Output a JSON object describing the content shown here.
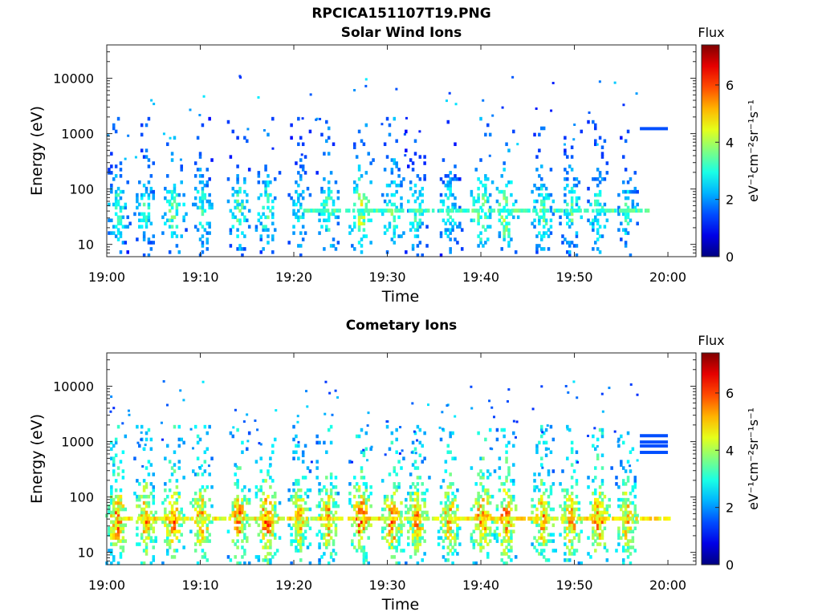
{
  "figure_title": "RPCICA151107T19.PNG",
  "chart_data": [
    {
      "type": "heatmap",
      "title": "Solar Wind Ions",
      "xlabel": "Time",
      "ylabel": "Energy (eV)",
      "y_scale": "log",
      "ylim": [
        6,
        40000
      ],
      "xlim": [
        "19:00",
        "20:03"
      ],
      "x_ticks": [
        "19:00",
        "19:10",
        "19:20",
        "19:30",
        "19:40",
        "19:50",
        "20:00"
      ],
      "y_ticks": [
        "10",
        "100",
        "1000",
        "10000"
      ],
      "colorbar": {
        "label": "Flux",
        "unit": "eV⁻¹cm⁻²sr⁻¹s⁻¹",
        "range": [
          0,
          7.4
        ],
        "ticks": [
          "0",
          "2",
          "4",
          "6"
        ],
        "colormap": "jet"
      },
      "burst_center_minutes": [
        1,
        4,
        7,
        10,
        14,
        17,
        20.5,
        23.5,
        27,
        30.5,
        33,
        36.5,
        40,
        42.5,
        46.5,
        49.5,
        52.5,
        55.5
      ],
      "burst_peak_flux": [
        3.4,
        3.3,
        3.8,
        3.4,
        3.6,
        3.6,
        3.2,
        3.6,
        4.5,
        3.9,
        3.4,
        3.3,
        4.1,
        4.2,
        3.6,
        3.5,
        3.5,
        3.3
      ],
      "dwell_band": {
        "start_minutes": 21,
        "end_minutes": 58,
        "energy_eV": 40,
        "flux": 3.3
      },
      "marker_line": {
        "start_minutes": 57.0,
        "end_minutes": 60.0,
        "energy_eV": 1250,
        "flux": 1.5
      }
    },
    {
      "type": "heatmap",
      "title": "Cometary Ions",
      "xlabel": "Time",
      "ylabel": "Energy (eV)",
      "y_scale": "log",
      "ylim": [
        6,
        40000
      ],
      "xlim": [
        "19:00",
        "20:03"
      ],
      "x_ticks": [
        "19:00",
        "19:10",
        "19:20",
        "19:30",
        "19:40",
        "19:50",
        "20:00"
      ],
      "y_ticks": [
        "10",
        "100",
        "1000",
        "10000"
      ],
      "colorbar": {
        "label": "Flux",
        "unit": "eV⁻¹cm⁻²sr⁻¹s⁻¹",
        "range": [
          0,
          7.4
        ],
        "ticks": [
          "0",
          "2",
          "4",
          "6"
        ],
        "colormap": "jet"
      },
      "burst_center_minutes": [
        1,
        4,
        7,
        10,
        14,
        17,
        20.5,
        23.5,
        27,
        30.5,
        33,
        36.5,
        40,
        42.5,
        46.5,
        49.5,
        52.5,
        55.5
      ],
      "burst_peak_flux": [
        5.8,
        5.6,
        5.9,
        5.6,
        5.7,
        6.0,
        5.3,
        5.6,
        6.2,
        5.9,
        5.6,
        5.5,
        6.0,
        5.9,
        5.6,
        5.6,
        5.9,
        5.3
      ],
      "dwell_band": {
        "start_minutes": 1,
        "end_minutes": 60,
        "energy_eV": 40,
        "flux": 4.6
      },
      "marker_lines": [
        {
          "start_minutes": 57.0,
          "end_minutes": 60.0,
          "energy_eV": 1300,
          "flux": 1.5
        },
        {
          "start_minutes": 57.0,
          "end_minutes": 60.0,
          "energy_eV": 1000,
          "flux": 1.5
        },
        {
          "start_minutes": 57.0,
          "end_minutes": 60.0,
          "energy_eV": 850,
          "flux": 1.5
        },
        {
          "start_minutes": 57.0,
          "end_minutes": 60.0,
          "energy_eV": 650,
          "flux": 1.5
        }
      ]
    }
  ]
}
